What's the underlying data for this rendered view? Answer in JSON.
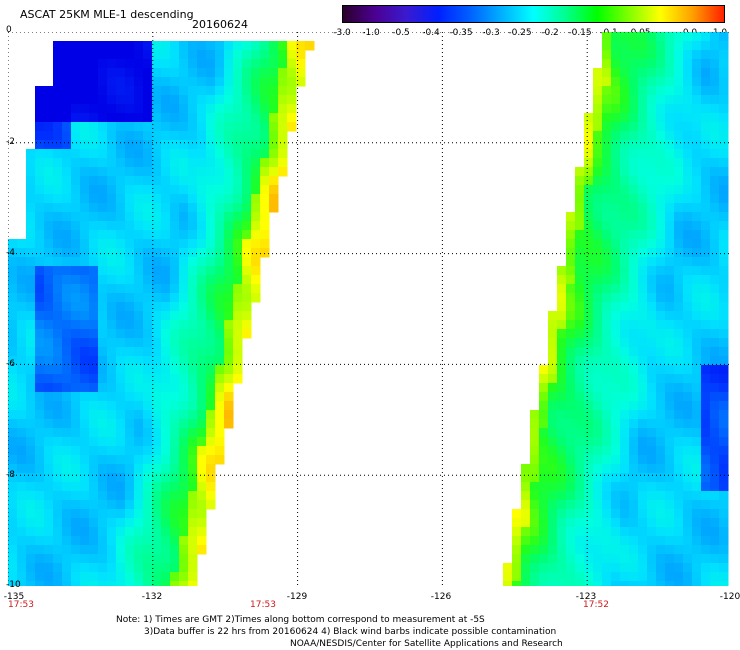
{
  "header": {
    "title": "ASCAT 25KM MLE-1 descending",
    "date": "20160624"
  },
  "colorbar": {
    "labels": [
      "-3.0",
      "-1.0",
      "-0.5",
      "-0.4",
      "-0.35",
      "-0.3",
      "-0.25",
      "-0.2",
      "-0.15",
      "-0.1",
      "-0.05",
      "0.0",
      "1.0"
    ],
    "colors": [
      "#2a002a",
      "#4b0090",
      "#3a1ad0",
      "#0020ff",
      "#0060ff",
      "#00b0ff",
      "#00ffff",
      "#00ff90",
      "#00ff00",
      "#80ff00",
      "#ffff00",
      "#ffa000",
      "#ff2000"
    ]
  },
  "axes": {
    "y_ticks": [
      "0",
      "-2",
      "-4",
      "-6",
      "-8",
      "-10"
    ],
    "x_ticks": [
      "-135",
      "-132",
      "-129",
      "-126",
      "-123",
      "-120"
    ],
    "lon_range": [
      -135,
      -120
    ],
    "lat_range": [
      -10,
      0
    ]
  },
  "times": [
    "17:53",
    "17:53",
    "17:52"
  ],
  "notes": {
    "line1": "Note: 1) Times are GMT 2)Times along bottom correspond to measurement at -5S",
    "line2": "3)Data buffer is 22 hrs from 20160624 4) Black wind barbs indicate possible contamination",
    "line3": "NOAA/NESDIS/Center for Satellite Applications and Research"
  },
  "colors": {
    "background": "#ffffff",
    "grid": "#000000",
    "time_label": "#cc1a1a"
  }
}
